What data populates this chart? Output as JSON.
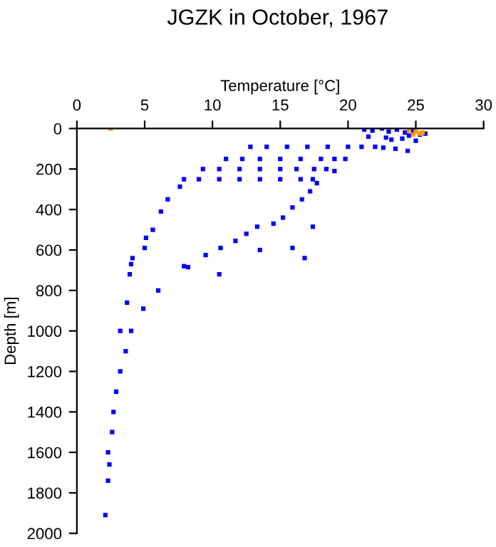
{
  "chart_data": {
    "type": "scatter",
    "title": "JGZK in October, 1967",
    "xlabel": "Temperature [°C]",
    "ylabel": "Depth [m]",
    "xlim": [
      0,
      30
    ],
    "xticks": [
      0,
      5,
      10,
      15,
      20,
      25,
      30
    ],
    "ylim": [
      2000,
      0
    ],
    "yticks": [
      0,
      200,
      400,
      600,
      800,
      1000,
      1200,
      1400,
      1600,
      1800,
      2000
    ],
    "marker": "square",
    "grid": false,
    "legend": false,
    "series": [
      {
        "color": "#0000ff",
        "x": [
          21.2,
          21.8,
          22.5,
          23.0,
          23.6,
          24.2,
          24.8,
          25.3,
          25.7,
          21.5,
          22.8,
          24.0,
          25.0,
          23.2,
          24.5,
          12.8,
          14.0,
          15.5,
          17.0,
          18.5,
          20.0,
          21.0,
          22.0,
          22.6,
          23.5,
          24.4,
          11.0,
          12.2,
          13.5,
          15.0,
          16.5,
          18.0,
          19.0,
          19.8,
          9.3,
          10.5,
          12.0,
          13.5,
          15.0,
          16.2,
          17.5,
          18.4,
          19.0,
          7.9,
          9.0,
          10.5,
          12.0,
          13.5,
          15.0,
          16.5,
          17.4,
          17.7,
          17.2,
          16.6,
          15.9,
          15.2,
          14.5,
          13.3,
          12.5,
          11.7,
          10.6,
          9.5,
          8.2,
          7.9,
          6.0,
          4.9,
          4.0,
          3.6,
          3.2,
          2.9,
          2.7,
          2.6,
          2.3,
          2.4,
          2.3,
          2.1,
          7.6,
          6.7,
          6.2,
          5.6,
          5.1,
          5.0,
          4.1,
          4.0,
          3.9,
          3.7,
          3.2,
          17.4,
          15.9,
          16.8,
          13.5,
          10.5
        ],
        "values": [
          5,
          10,
          0,
          15,
          5,
          20,
          10,
          30,
          25,
          40,
          45,
          50,
          60,
          55,
          35,
          90,
          90,
          90,
          90,
          90,
          90,
          90,
          90,
          95,
          100,
          110,
          150,
          150,
          150,
          150,
          150,
          150,
          150,
          150,
          200,
          200,
          200,
          200,
          200,
          200,
          200,
          200,
          210,
          250,
          250,
          250,
          250,
          250,
          250,
          250,
          250,
          270,
          310,
          350,
          390,
          440,
          470,
          485,
          520,
          555,
          590,
          625,
          685,
          680,
          800,
          890,
          1000,
          1100,
          1200,
          1300,
          1400,
          1500,
          1600,
          1660,
          1740,
          1910,
          287,
          350,
          410,
          500,
          540,
          590,
          640,
          670,
          720,
          860,
          1000,
          485,
          590,
          640,
          600,
          720
        ]
      },
      {
        "color": "#ff9900",
        "x": [
          2.5,
          24.5,
          25.0,
          25.5,
          24.8,
          25.3
        ],
        "values": [
          0,
          10,
          15,
          20,
          30,
          25
        ]
      }
    ]
  }
}
